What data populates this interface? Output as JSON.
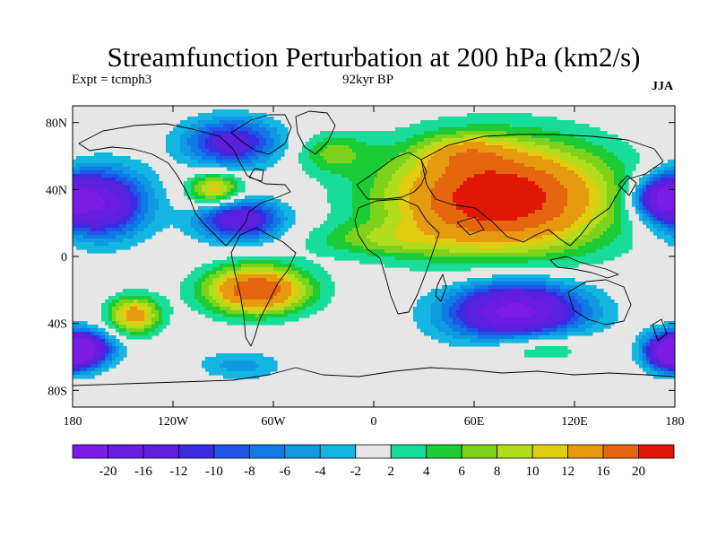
{
  "header": {
    "title": "Streamfunction Perturbation at 200 hPa (km2/s)",
    "left": "Expt = tcmph3",
    "center": "92kyr BP",
    "right": "JJA"
  },
  "map": {
    "lon_range": [
      -180,
      180
    ],
    "lat_range": [
      -90,
      90
    ],
    "lat_ticks": [
      {
        "value": 80,
        "label": "80N"
      },
      {
        "value": 40,
        "label": "40N"
      },
      {
        "value": 0,
        "label": "0"
      },
      {
        "value": -40,
        "label": "40S"
      },
      {
        "value": -80,
        "label": "80S"
      }
    ],
    "lon_ticks": [
      {
        "value": -180,
        "label": "180"
      },
      {
        "value": -120,
        "label": "120W"
      },
      {
        "value": -60,
        "label": "60W"
      },
      {
        "value": 0,
        "label": "0"
      },
      {
        "value": 60,
        "label": "60E"
      },
      {
        "value": 120,
        "label": "120E"
      },
      {
        "value": 180,
        "label": "180"
      }
    ],
    "background_color": "#e6e6e6",
    "anomalies": [
      {
        "lon": 75,
        "lat": 35,
        "rx": 65,
        "ry": 32,
        "amp": 24
      },
      {
        "lon": 55,
        "lat": 62,
        "rx": 25,
        "ry": 10,
        "amp": 6
      },
      {
        "lon": -70,
        "lat": -20,
        "rx": 30,
        "ry": 14,
        "amp": 20
      },
      {
        "lon": -143,
        "lat": -35,
        "rx": 15,
        "ry": 11,
        "amp": 14
      },
      {
        "lon": 97,
        "lat": -53,
        "rx": 32,
        "ry": 10,
        "amp": 7
      },
      {
        "lon": -25,
        "lat": 62,
        "rx": 22,
        "ry": 12,
        "amp": 6
      },
      {
        "lon": -80,
        "lat": -65,
        "rx": 24,
        "ry": 8,
        "amp": -5
      },
      {
        "lon": 85,
        "lat": -33,
        "rx": 40,
        "ry": 18,
        "amp": -22
      },
      {
        "lon": -165,
        "lat": 32,
        "rx": 28,
        "ry": 20,
        "amp": -20
      },
      {
        "lon": -80,
        "lat": 22,
        "rx": 25,
        "ry": 12,
        "amp": -16
      },
      {
        "lon": -85,
        "lat": 68,
        "rx": 28,
        "ry": 14,
        "amp": -14
      },
      {
        "lon": 172,
        "lat": 35,
        "rx": 16,
        "ry": 12,
        "amp": -16
      },
      {
        "lon": -175,
        "lat": -55,
        "rx": 18,
        "ry": 10,
        "amp": -20
      },
      {
        "lon": 178,
        "lat": -58,
        "rx": 14,
        "ry": 10,
        "amp": -18
      },
      {
        "lon": -95,
        "lat": 40,
        "rx": 16,
        "ry": 10,
        "amp": 12
      },
      {
        "lon": 0,
        "lat": 10,
        "rx": 40,
        "ry": 10,
        "amp": 5
      }
    ]
  },
  "colorbar": {
    "levels": [
      -20,
      -16,
      -12,
      -10,
      -8,
      -6,
      -4,
      -2,
      2,
      4,
      6,
      8,
      10,
      12,
      16,
      20
    ],
    "labels": [
      "-20",
      "-16",
      "-12",
      "-10",
      "-8",
      "-6",
      "-4",
      "-2",
      "2",
      "4",
      "6",
      "8",
      "10",
      "12",
      "16",
      "20"
    ],
    "colors": [
      "#7a1ce6",
      "#6a1de0",
      "#5a20dc",
      "#3a2ae0",
      "#1f55e6",
      "#0f7ae6",
      "#0e99e1",
      "#13b6e0",
      "#e6e6e6",
      "#18dc9a",
      "#1ccc36",
      "#7fd21c",
      "#b2dd1c",
      "#e0cc10",
      "#e59a10",
      "#e5660e",
      "#e01606"
    ]
  }
}
